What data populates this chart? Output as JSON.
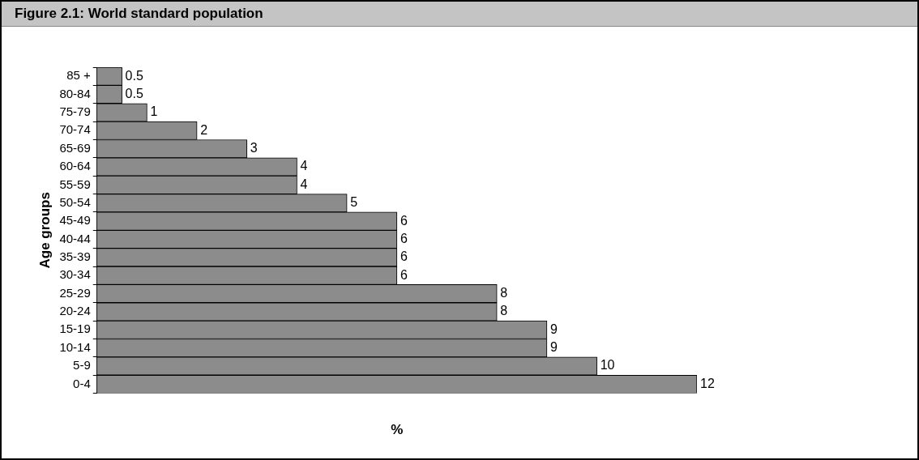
{
  "chart_data": {
    "type": "bar",
    "orientation": "horizontal",
    "title": "Figure 2.1: World standard population",
    "xlabel": "%",
    "ylabel": "Age groups",
    "categories": [
      "85 +",
      "80-84",
      "75-79",
      "70-74",
      "65-69",
      "60-64",
      "55-59",
      "50-54",
      "45-49",
      "40-44",
      "35-39",
      "30-34",
      "25-29",
      "20-24",
      "15-19",
      "10-14",
      "5-9",
      "0-4"
    ],
    "values": [
      0.5,
      0.5,
      1,
      2,
      3,
      4,
      4,
      5,
      6,
      6,
      6,
      6,
      8,
      8,
      9,
      9,
      10,
      12
    ],
    "color": "#8c8c8c",
    "data_labels": true,
    "legend": false,
    "grid": false
  }
}
